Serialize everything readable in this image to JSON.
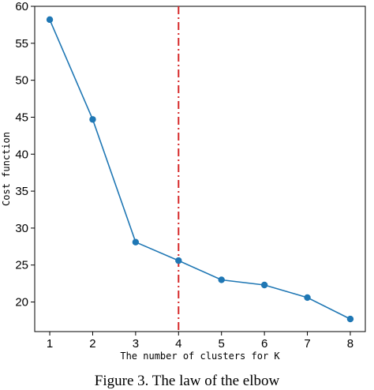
{
  "caption": "Figure 3. The law of the elbow",
  "chart_data": {
    "type": "line",
    "x": [
      1,
      2,
      3,
      4,
      5,
      6,
      7,
      8
    ],
    "series": [
      {
        "values": [
          58.2,
          44.7,
          28.1,
          25.6,
          23.0,
          22.3,
          20.6,
          17.7
        ],
        "color": "#1f77b4"
      }
    ],
    "xlabel": "The number of clusters for K",
    "ylabel": "Cost function",
    "xticks": [
      "1",
      "2",
      "3",
      "4",
      "5",
      "6",
      "7",
      "8"
    ],
    "yticks": [
      "20",
      "25",
      "30",
      "35",
      "40",
      "45",
      "50",
      "55",
      "60"
    ],
    "xlim": [
      0.65,
      8.35
    ],
    "ylim": [
      16.0,
      60.0
    ],
    "grid": false,
    "reference_line": {
      "x": 4,
      "color": "#d62728",
      "style": "dash-dot"
    }
  }
}
